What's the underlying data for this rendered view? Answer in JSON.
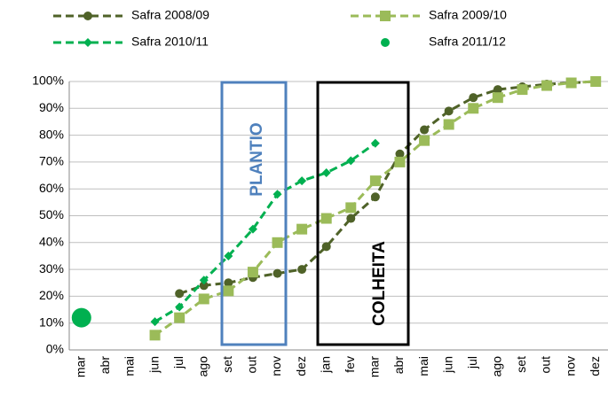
{
  "chart_data": {
    "type": "line",
    "categories": [
      "mar",
      "abr",
      "mai",
      "jun",
      "jul",
      "ago",
      "set",
      "out",
      "nov",
      "dez",
      "jan",
      "fev",
      "mar",
      "abr",
      "mai",
      "jun",
      "jul",
      "ago",
      "set",
      "out",
      "nov",
      "dez"
    ],
    "series": [
      {
        "name": "Safra 2008/09",
        "color": "#4f6228",
        "marker": "circle",
        "line": true,
        "values": [
          null,
          null,
          null,
          null,
          21,
          24,
          25,
          27,
          28.5,
          30,
          38.5,
          49,
          57,
          73,
          82,
          89,
          94,
          97,
          98,
          99,
          99.5,
          100
        ]
      },
      {
        "name": "Safra 2009/10",
        "color": "#9bbb59",
        "marker": "square",
        "line": true,
        "values": [
          null,
          null,
          null,
          5.5,
          12,
          19,
          22,
          29,
          40,
          45,
          49,
          53,
          63,
          70,
          78,
          84,
          90,
          94,
          97,
          98.5,
          99.5,
          100
        ]
      },
      {
        "name": "Safra 2010/11",
        "color": "#00b050",
        "marker": "diamond",
        "line": true,
        "values": [
          null,
          null,
          null,
          10.5,
          16,
          26,
          35,
          45,
          58,
          63,
          66,
          70.5,
          77,
          null,
          null,
          null,
          null,
          null,
          null,
          null,
          null,
          null
        ]
      },
      {
        "name": "Safra 2011/12",
        "color": "#00b050",
        "marker": "bigcircle",
        "line": false,
        "values": [
          12,
          null,
          null,
          null,
          null,
          null,
          null,
          null,
          null,
          null,
          null,
          null,
          null,
          null,
          null,
          null,
          null,
          null,
          null,
          null,
          null,
          null
        ]
      }
    ],
    "ylim": [
      0,
      100
    ],
    "yticks": [
      {
        "value": 0,
        "label": "0%"
      },
      {
        "value": 10,
        "label": "10%"
      },
      {
        "value": 20,
        "label": "20%"
      },
      {
        "value": 30,
        "label": "30%"
      },
      {
        "value": 40,
        "label": "40%"
      },
      {
        "value": 50,
        "label": "50%"
      },
      {
        "value": 60,
        "label": "60%"
      },
      {
        "value": 70,
        "label": "70%"
      },
      {
        "value": 80,
        "label": "80%"
      },
      {
        "value": 90,
        "label": "90%"
      },
      {
        "value": 100,
        "label": "100%"
      }
    ],
    "grid": true,
    "annotations": [
      "PLANTIO",
      "COLHEITA"
    ]
  }
}
